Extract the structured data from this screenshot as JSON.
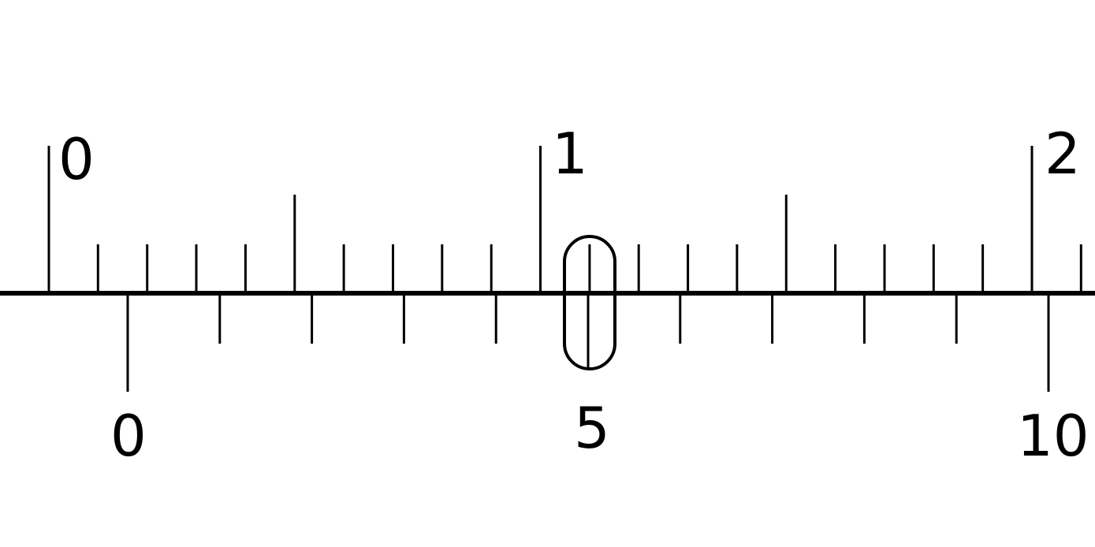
{
  "main_scale": {
    "labels": [
      "0",
      "1",
      "2"
    ],
    "ticks_per_unit": 10
  },
  "vernier_scale": {
    "labels": [
      "0",
      "5",
      "10"
    ],
    "divisions": 10
  },
  "highlight": {
    "description": "aligned-division",
    "vernier_division": 5
  },
  "colors": {
    "line": "#000000",
    "background": "#ffffff"
  }
}
